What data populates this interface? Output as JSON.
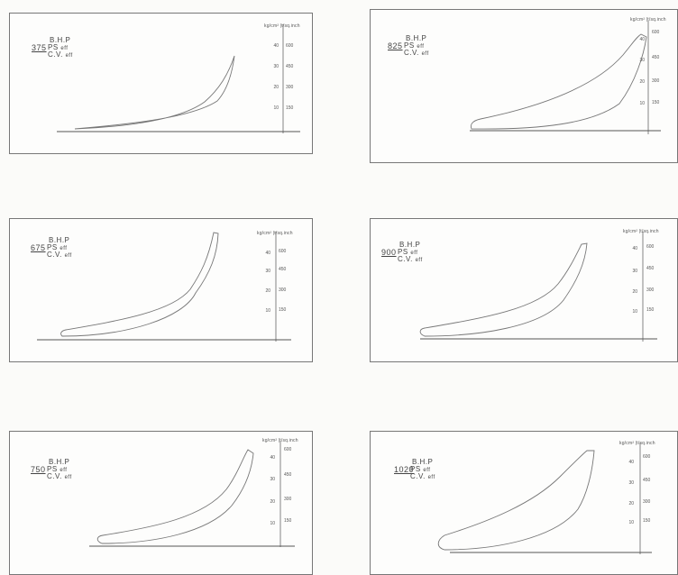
{
  "label_bhp": "B.H.P",
  "label_ps": "PS",
  "label_cv": "C.V.",
  "label_eff_short": "eff",
  "unit_header": "kg/cm² |t/sq.inch",
  "scale_kgcm": [
    "40",
    "30",
    "20",
    "10"
  ],
  "scale_lbin": [
    "600",
    "450",
    "300",
    "150"
  ],
  "panels": [
    {
      "hp": "375"
    },
    {
      "hp": "825"
    },
    {
      "hp": "675"
    },
    {
      "hp": "900"
    },
    {
      "hp": "750"
    },
    {
      "hp": "1020"
    }
  ]
}
